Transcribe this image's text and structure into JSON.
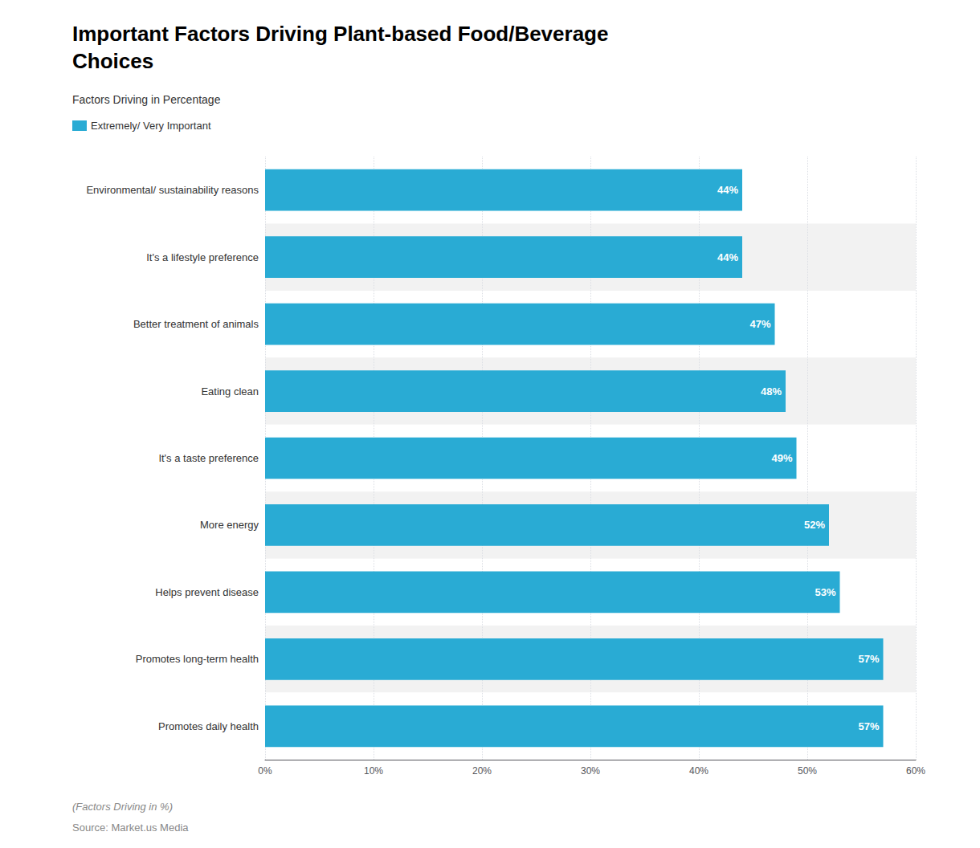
{
  "chart_data": {
    "type": "bar",
    "orientation": "horizontal",
    "title": "Important Factors Driving Plant-based Food/Beverage\nChoices",
    "subtitle": "Factors Driving in Percentage",
    "annotations": [
      "(Factors Driving in %)",
      "Source: Market.us Media"
    ],
    "categories": [
      "Environmental/ sustainability reasons",
      "It's a lifestyle preference",
      "Better treatment of animals",
      "Eating clean",
      "It's a taste preference",
      "More energy",
      "Helps prevent disease",
      "Promotes long-term health",
      "Promotes daily health"
    ],
    "series": [
      {
        "name": "Extremely/ Very Important",
        "color": "#29ABD4",
        "values": [
          44,
          44,
          47,
          48,
          49,
          52,
          53,
          57,
          57
        ],
        "value_labels": [
          "44%",
          "44%",
          "47%",
          "48%",
          "49%",
          "52%",
          "53%",
          "57%",
          "57%"
        ]
      }
    ],
    "xlim": [
      0,
      60
    ],
    "xticks": [
      {
        "value": 0,
        "label": "0%"
      },
      {
        "value": 10,
        "label": "10%"
      },
      {
        "value": 20,
        "label": "20%"
      },
      {
        "value": 30,
        "label": "30%"
      },
      {
        "value": 40,
        "label": "40%"
      },
      {
        "value": 50,
        "label": "50%"
      },
      {
        "value": 60,
        "label": "60%"
      }
    ],
    "grid": true,
    "legend": "upper left",
    "data_labels": true
  }
}
